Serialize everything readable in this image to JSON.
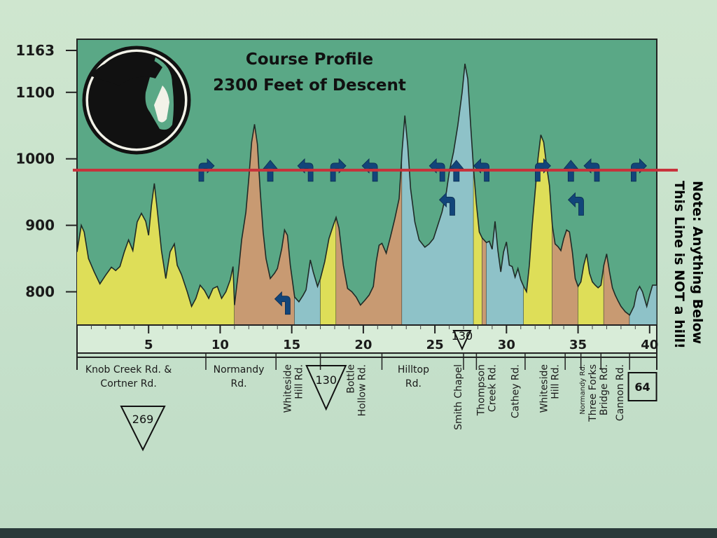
{
  "chart_data": {
    "type": "area",
    "title": "Course Profile",
    "subtitle": "2300 Feet of Descent",
    "xlim": [
      0,
      40.5
    ],
    "ylim": [
      750,
      1163
    ],
    "y_ticks": [
      {
        "value": 1163,
        "label": "1163"
      },
      {
        "value": 1100,
        "label": "1100"
      },
      {
        "value": 1000,
        "label": "1000"
      },
      {
        "value": 900,
        "label": "900"
      },
      {
        "value": 800,
        "label": "800"
      }
    ],
    "x_ticks": [
      {
        "value": 5,
        "label": "5"
      },
      {
        "value": 10,
        "label": "10"
      },
      {
        "value": 15,
        "label": "15"
      },
      {
        "value": 20,
        "label": "20"
      },
      {
        "value": 25,
        "label": "25"
      },
      {
        "value": 30,
        "label": "30"
      },
      {
        "value": 35,
        "label": "35"
      },
      {
        "value": 40,
        "label": "40"
      }
    ],
    "threshold": {
      "value": 983,
      "color": "#c8303a"
    },
    "note": [
      "Note: Anything Below",
      "This Line is NOT a hill!"
    ],
    "colors": {
      "plot_bg": "#5aa886",
      "yellow": "#dede58",
      "tan": "#c89a72",
      "blue": "#8ec2c8",
      "arrow": "#12457a",
      "line": "#1f2a26"
    },
    "profile": [
      [
        0,
        860
      ],
      [
        0.3,
        900
      ],
      [
        0.5,
        890
      ],
      [
        0.8,
        850
      ],
      [
        1.2,
        830
      ],
      [
        1.6,
        812
      ],
      [
        2.0,
        825
      ],
      [
        2.4,
        837
      ],
      [
        2.7,
        832
      ],
      [
        3.0,
        838
      ],
      [
        3.3,
        860
      ],
      [
        3.6,
        878
      ],
      [
        3.9,
        862
      ],
      [
        4.2,
        905
      ],
      [
        4.5,
        918
      ],
      [
        4.8,
        906
      ],
      [
        5.0,
        885
      ],
      [
        5.2,
        930
      ],
      [
        5.4,
        963
      ],
      [
        5.6,
        924
      ],
      [
        5.9,
        862
      ],
      [
        6.2,
        820
      ],
      [
        6.5,
        860
      ],
      [
        6.8,
        872
      ],
      [
        7.0,
        840
      ],
      [
        7.3,
        826
      ],
      [
        7.7,
        800
      ],
      [
        8.0,
        778
      ],
      [
        8.3,
        790
      ],
      [
        8.6,
        810
      ],
      [
        8.9,
        802
      ],
      [
        9.2,
        790
      ],
      [
        9.5,
        805
      ],
      [
        9.8,
        808
      ],
      [
        10.1,
        790
      ],
      [
        10.4,
        800
      ],
      [
        10.7,
        818
      ],
      [
        10.9,
        838
      ],
      [
        11.0,
        780
      ],
      [
        11.3,
        835
      ],
      [
        11.5,
        878
      ],
      [
        11.8,
        920
      ],
      [
        12.0,
        970
      ],
      [
        12.2,
        1025
      ],
      [
        12.4,
        1052
      ],
      [
        12.6,
        1022
      ],
      [
        12.8,
        950
      ],
      [
        13.0,
        890
      ],
      [
        13.2,
        850
      ],
      [
        13.5,
        820
      ],
      [
        13.8,
        828
      ],
      [
        14.0,
        835
      ],
      [
        14.3,
        865
      ],
      [
        14.5,
        893
      ],
      [
        14.7,
        885
      ],
      [
        14.9,
        840
      ],
      [
        15.2,
        792
      ],
      [
        15.5,
        785
      ],
      [
        15.8,
        795
      ],
      [
        16.0,
        803
      ],
      [
        16.3,
        848
      ],
      [
        16.5,
        830
      ],
      [
        16.8,
        808
      ],
      [
        17.0,
        820
      ],
      [
        17.3,
        845
      ],
      [
        17.6,
        880
      ],
      [
        17.9,
        900
      ],
      [
        18.1,
        912
      ],
      [
        18.3,
        896
      ],
      [
        18.6,
        840
      ],
      [
        18.9,
        805
      ],
      [
        19.2,
        800
      ],
      [
        19.5,
        792
      ],
      [
        19.8,
        780
      ],
      [
        20.1,
        787
      ],
      [
        20.4,
        795
      ],
      [
        20.7,
        808
      ],
      [
        20.9,
        845
      ],
      [
        21.1,
        870
      ],
      [
        21.3,
        873
      ],
      [
        21.6,
        858
      ],
      [
        21.9,
        883
      ],
      [
        22.2,
        910
      ],
      [
        22.5,
        940
      ],
      [
        22.7,
        1010
      ],
      [
        22.9,
        1065
      ],
      [
        23.1,
        1020
      ],
      [
        23.3,
        955
      ],
      [
        23.6,
        905
      ],
      [
        23.9,
        878
      ],
      [
        24.3,
        867
      ],
      [
        24.6,
        872
      ],
      [
        24.9,
        880
      ],
      [
        25.2,
        900
      ],
      [
        25.5,
        920
      ],
      [
        25.8,
        950
      ],
      [
        26.0,
        980
      ],
      [
        26.3,
        1010
      ],
      [
        26.6,
        1050
      ],
      [
        26.9,
        1100
      ],
      [
        27.1,
        1143
      ],
      [
        27.3,
        1120
      ],
      [
        27.5,
        1050
      ],
      [
        27.7,
        985
      ],
      [
        27.9,
        932
      ],
      [
        28.1,
        890
      ],
      [
        28.3,
        881
      ],
      [
        28.6,
        874
      ],
      [
        28.8,
        876
      ],
      [
        29.0,
        864
      ],
      [
        29.2,
        906
      ],
      [
        29.4,
        862
      ],
      [
        29.6,
        830
      ],
      [
        29.8,
        860
      ],
      [
        30.0,
        875
      ],
      [
        30.2,
        840
      ],
      [
        30.4,
        838
      ],
      [
        30.6,
        822
      ],
      [
        30.8,
        835
      ],
      [
        31.0,
        818
      ],
      [
        31.2,
        808
      ],
      [
        31.4,
        800
      ],
      [
        31.6,
        840
      ],
      [
        31.8,
        900
      ],
      [
        32.0,
        950
      ],
      [
        32.2,
        1000
      ],
      [
        32.4,
        1036
      ],
      [
        32.6,
        1025
      ],
      [
        32.8,
        990
      ],
      [
        33.0,
        960
      ],
      [
        33.2,
        900
      ],
      [
        33.4,
        872
      ],
      [
        33.6,
        868
      ],
      [
        33.8,
        862
      ],
      [
        34.0,
        880
      ],
      [
        34.2,
        893
      ],
      [
        34.4,
        890
      ],
      [
        34.6,
        860
      ],
      [
        34.8,
        820
      ],
      [
        35.0,
        808
      ],
      [
        35.2,
        815
      ],
      [
        35.4,
        840
      ],
      [
        35.6,
        857
      ],
      [
        35.8,
        828
      ],
      [
        36.0,
        815
      ],
      [
        36.2,
        810
      ],
      [
        36.4,
        806
      ],
      [
        36.6,
        810
      ],
      [
        36.8,
        840
      ],
      [
        37.0,
        857
      ],
      [
        37.2,
        830
      ],
      [
        37.4,
        806
      ],
      [
        37.6,
        795
      ],
      [
        37.8,
        786
      ],
      [
        38.0,
        778
      ],
      [
        38.3,
        770
      ],
      [
        38.6,
        765
      ],
      [
        38.9,
        778
      ],
      [
        39.1,
        800
      ],
      [
        39.3,
        808
      ],
      [
        39.5,
        800
      ],
      [
        39.8,
        778
      ],
      [
        40.0,
        795
      ],
      [
        40.2,
        810
      ],
      [
        40.5,
        810
      ]
    ],
    "segments": [
      {
        "end": 11.0,
        "color": "yellow"
      },
      {
        "end": 15.2,
        "color": "tan"
      },
      {
        "end": 17.0,
        "color": "blue"
      },
      {
        "end": 18.1,
        "color": "yellow"
      },
      {
        "end": 22.7,
        "color": "tan"
      },
      {
        "end": 27.7,
        "color": "blue"
      },
      {
        "end": 28.3,
        "color": "yellow"
      },
      {
        "end": 28.6,
        "color": "tan"
      },
      {
        "end": 31.2,
        "color": "blue"
      },
      {
        "end": 33.2,
        "color": "yellow"
      },
      {
        "end": 35.0,
        "color": "tan"
      },
      {
        "end": 36.8,
        "color": "yellow"
      },
      {
        "end": 38.6,
        "color": "tan"
      },
      {
        "end": 40.5,
        "color": "blue"
      }
    ],
    "turn_arrows": [
      {
        "x": 9.0,
        "y": 983,
        "dir": "right"
      },
      {
        "x": 13.5,
        "y": 983,
        "dir": "straight"
      },
      {
        "x": 16.0,
        "y": 983,
        "dir": "left"
      },
      {
        "x": 18.2,
        "y": 983,
        "dir": "right"
      },
      {
        "x": 20.5,
        "y": 983,
        "dir": "left"
      },
      {
        "x": 25.2,
        "y": 983,
        "dir": "left"
      },
      {
        "x": 26.5,
        "y": 983,
        "dir": "straight"
      },
      {
        "x": 28.3,
        "y": 983,
        "dir": "left"
      },
      {
        "x": 32.5,
        "y": 983,
        "dir": "right"
      },
      {
        "x": 34.5,
        "y": 983,
        "dir": "straight"
      },
      {
        "x": 36.0,
        "y": 983,
        "dir": "left"
      },
      {
        "x": 39.2,
        "y": 983,
        "dir": "right"
      },
      {
        "x": 25.9,
        "y": 932,
        "dir": "left"
      },
      {
        "x": 34.9,
        "y": 932,
        "dir": "left"
      },
      {
        "x": 14.4,
        "y": 783,
        "dir": "left"
      }
    ],
    "road_dividers": [
      9.0,
      13.9,
      17.0,
      21.3,
      27.0,
      27.9,
      31.3,
      34.1,
      35.2,
      36.6,
      38.6
    ],
    "roads": [
      {
        "lines": [
          "Knob Creek Rd. &",
          "Cortner Rd."
        ],
        "x": 3.6,
        "orient": "h"
      },
      {
        "lines": [
          "Normandy",
          "Rd."
        ],
        "x": 11.3,
        "orient": "h"
      },
      {
        "lines": [
          "Whiteside",
          "Hill Rd."
        ],
        "x": 15.1,
        "orient": "v"
      },
      {
        "lines": [
          "Bottle",
          "Hollow Rd."
        ],
        "x": 19.5,
        "orient": "v"
      },
      {
        "lines": [
          "Hilltop",
          "Rd."
        ],
        "x": 23.5,
        "orient": "h"
      },
      {
        "lines": [
          "Smith Chapel"
        ],
        "x": 26.6,
        "orient": "v"
      },
      {
        "lines": [
          "Thompson",
          "Creek Rd."
        ],
        "x": 28.6,
        "orient": "v"
      },
      {
        "lines": [
          "Cathey Rd."
        ],
        "x": 30.6,
        "orient": "v"
      },
      {
        "lines": [
          "Whiteside",
          "Hill Rd."
        ],
        "x": 33.0,
        "orient": "v"
      },
      {
        "lines": [
          "Normandy Rd.",
          "Three Forks",
          "Bridge Rd."
        ],
        "x": 36.0,
        "orient": "v",
        "small_first": true
      },
      {
        "lines": [
          "Cannon Rd."
        ],
        "x": 37.9,
        "orient": "v"
      }
    ],
    "route_shields": [
      {
        "label": "130",
        "x": 26.9,
        "row": "axis",
        "shape": "triangle"
      },
      {
        "label": "130",
        "x": 17.4,
        "row": "below",
        "shape": "triangle"
      },
      {
        "label": "269",
        "x": 4.6,
        "row": "bottom",
        "shape": "triangle"
      },
      {
        "label": "64",
        "x": 39.5,
        "row": "below",
        "shape": "square"
      }
    ]
  }
}
